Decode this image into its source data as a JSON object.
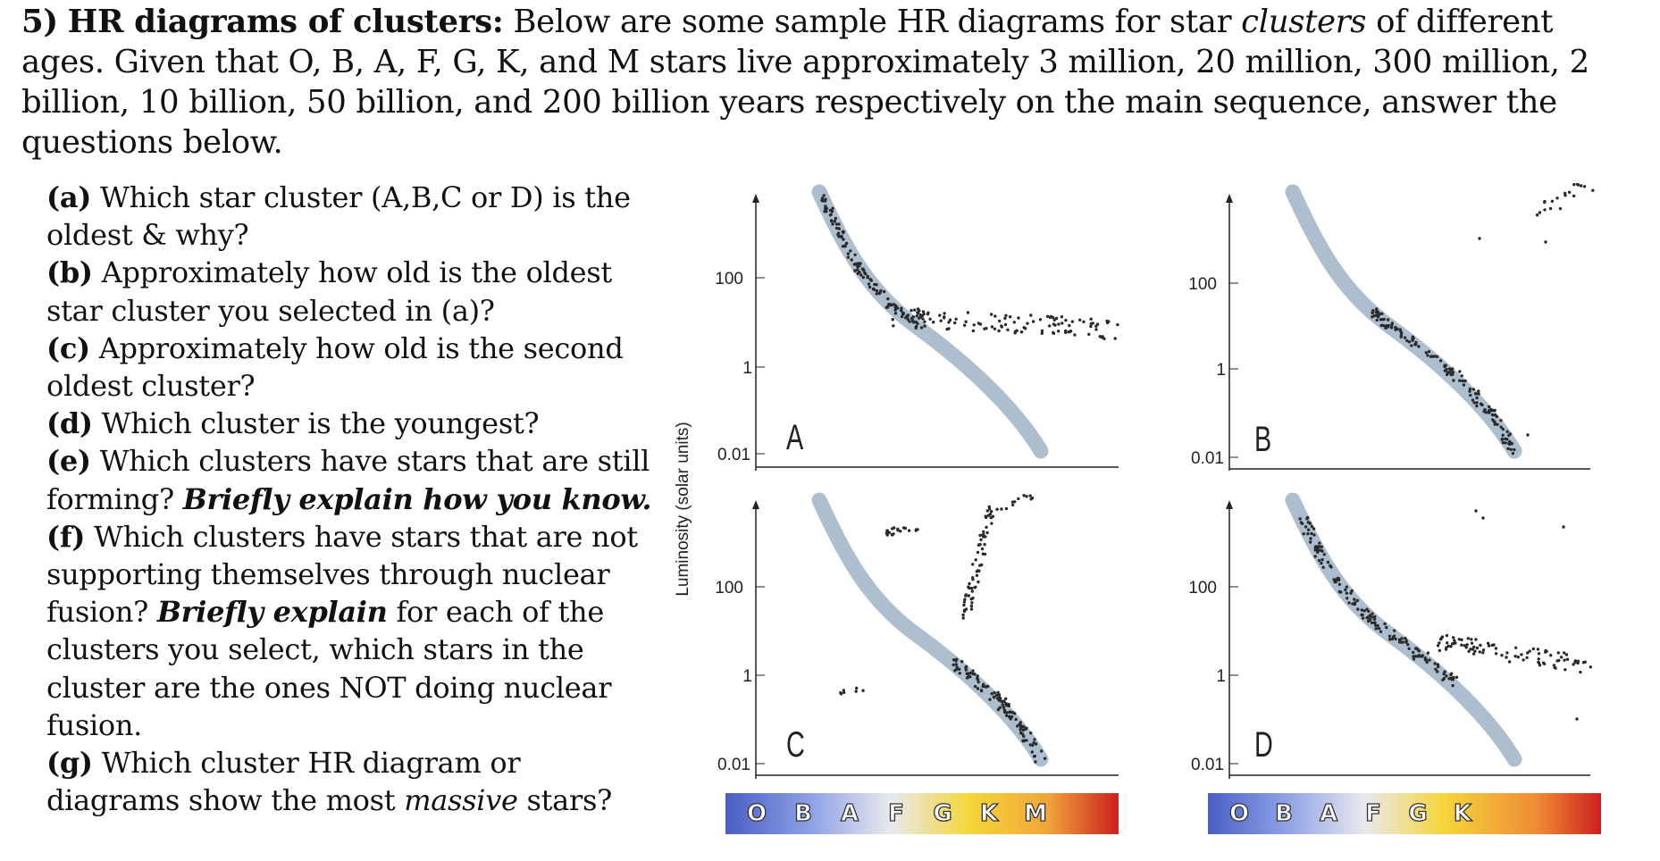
{
  "heading": {
    "number": "5)",
    "bold": "HR diagrams of clusters:",
    "part1": "Below are some sample HR diagrams for star",
    "italic": "clusters",
    "part2": "of different ages. Given that O, B, A, F, G, K, and M stars live approximately 3 million, 20 million, 300 million, 2 billion, 10 billion, 50 billion, and 200 billion years respectively on the main sequence, answer the questions below."
  },
  "questions": [
    {
      "label": "(a)",
      "text": "Which star cluster (A,B,C or D) is the oldest & why?"
    },
    {
      "label": "(b)",
      "text": "Approximately how old is the oldest star cluster you selected in (a)?"
    },
    {
      "label": "(c)",
      "text": "Approximately how old is the second oldest cluster?"
    },
    {
      "label": "(d)",
      "text": "Which cluster is the youngest?"
    },
    {
      "label": "(e)",
      "text": "Which clusters have stars that are still forming?",
      "emph": "Briefly explain how you know."
    },
    {
      "label": "(f)",
      "text": "Which clusters have stars that are not supporting themselves through nuclear fusion?",
      "emph": "Briefly explain",
      "text2": "for each of the clusters you select, which stars in the cluster are the ones NOT doing nuclear fusion."
    },
    {
      "label": "(g)",
      "text": "Which cluster HR diagram or diagrams show the most",
      "italic": "massive",
      "text2": "stars?"
    }
  ],
  "y_axis_label": "Luminosity (solar units)",
  "tick_labels": [
    "100",
    "1",
    "0.01"
  ],
  "panels": [
    {
      "id": "A",
      "label": "A"
    },
    {
      "id": "B",
      "label": "B"
    },
    {
      "id": "C",
      "label": "C"
    },
    {
      "id": "D",
      "label": "D"
    }
  ],
  "spectral_bars": [
    {
      "letters": [
        "O",
        "B",
        "A",
        "F",
        "G",
        "K",
        "M"
      ]
    },
    {
      "letters": [
        "O",
        "B",
        "A",
        "F",
        "G",
        "K"
      ]
    }
  ],
  "colors": {
    "main_sequence": "#9fb3c6",
    "star_dots": "#2a2a2a",
    "bar_start": "#4a5ec4",
    "bar_yellow": "#f5d63a",
    "bar_end": "#cc1f1f"
  }
}
